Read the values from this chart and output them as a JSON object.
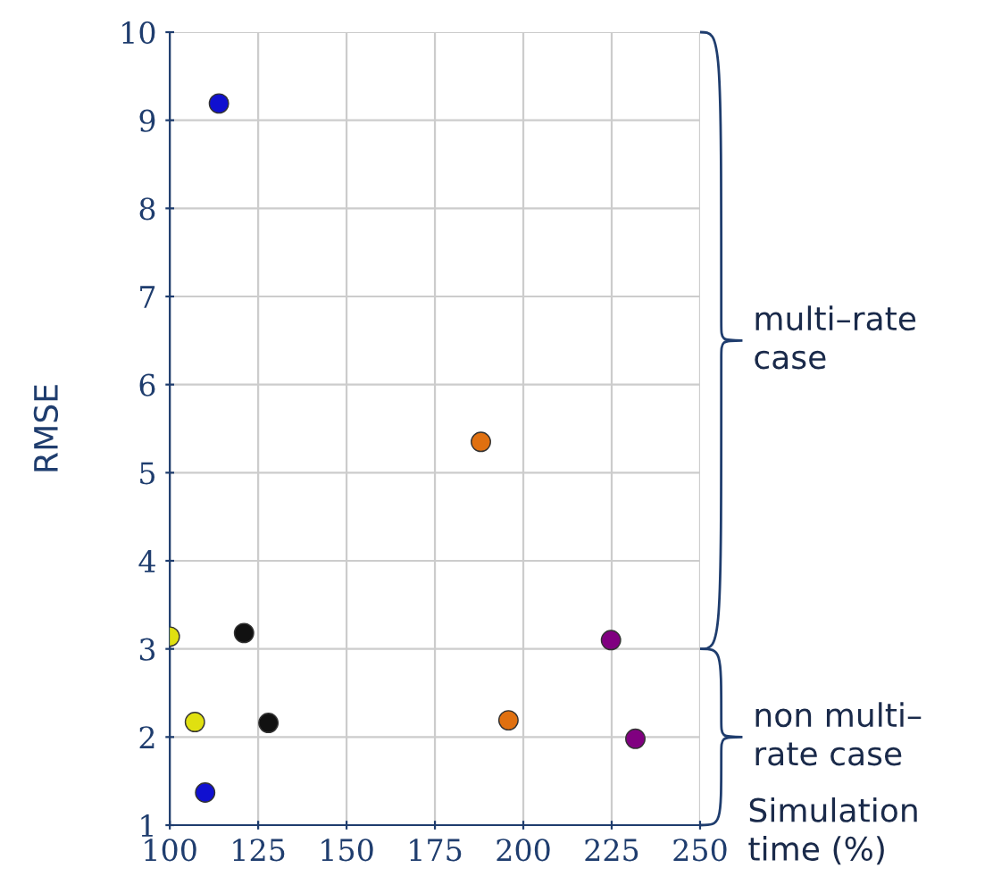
{
  "chart_data": {
    "type": "scatter",
    "xlabel": "Simulation time (%)",
    "ylabel": "RMSE",
    "xlim": [
      100,
      250
    ],
    "xticks": [
      100,
      125,
      150,
      175,
      200,
      225,
      250
    ],
    "ylim": [
      1,
      10
    ],
    "yticks": [
      1,
      2,
      3,
      4,
      5,
      6,
      7,
      8,
      9,
      10
    ],
    "grid": true,
    "marker": "circle",
    "series": [
      {
        "x": [
          113.9,
          100,
          121,
          107.1,
          127.9,
          110,
          188,
          195.8,
          224.8,
          231.7
        ],
        "values": [
          9.19,
          3.14,
          3.18,
          2.17,
          2.16,
          1.37,
          5.35,
          2.19,
          3.1,
          1.98
        ],
        "colors": [
          "#1010d0",
          "#e0e010",
          "#111111",
          "#e0e010",
          "#111111",
          "#1010d0",
          "#e07010",
          "#e07010",
          "#800080",
          "#800080"
        ]
      }
    ],
    "annotations": [
      "multi–rate case",
      "non multi–rate case"
    ]
  }
}
